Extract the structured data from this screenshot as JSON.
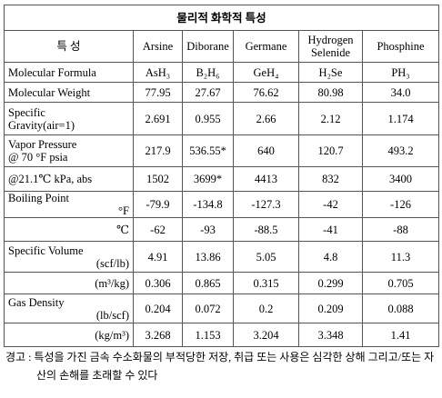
{
  "table": {
    "title": "물리적 화학적 특성",
    "header": [
      "특   성",
      "Arsine",
      "Diborane",
      "Germane",
      "Hydrogen Selenide",
      "Phosphine"
    ],
    "rows": [
      {
        "label": [
          "Molecular Formula"
        ],
        "cells": [
          "AsH₃",
          "B₂H₆",
          "GeH₄",
          "H₂Se",
          "PH₃"
        ]
      },
      {
        "label": [
          "Molecular Weight"
        ],
        "cells": [
          "77.95",
          "27.67",
          "76.62",
          "80.98",
          "34.0"
        ]
      },
      {
        "label": [
          "Specific",
          "Gravity(air=1)"
        ],
        "cells": [
          "2.691",
          "0.955",
          "2.66",
          "2.12",
          "1.174"
        ]
      },
      {
        "label": [
          "Vapor Pressure",
          "@ 70 °F psia"
        ],
        "cells": [
          "217.9",
          "536.55*",
          "640",
          "120.7",
          "493.2"
        ]
      },
      {
        "label": [
          "@21.1℃ kPa, abs"
        ],
        "cells": [
          "1502",
          "3699*",
          "4413",
          "832",
          "3400"
        ]
      },
      {
        "label": [
          "Boiling Point"
        ],
        "unit": "°F",
        "cells": [
          "-79.9",
          "-134.8",
          "-127.3",
          "-42",
          "-126"
        ]
      },
      {
        "unit": "℃",
        "cells": [
          "-62",
          "-93",
          "-88.5",
          "-41",
          "-88"
        ]
      },
      {
        "label": [
          "Specific Volume"
        ],
        "unit": "(scf/lb)",
        "cells": [
          "4.91",
          "13.86",
          "5.05",
          "4.8",
          "11.3"
        ]
      },
      {
        "unit": "(m³/kg)",
        "cells": [
          "0.306",
          "0.865",
          "0.315",
          "0.299",
          "0.705"
        ]
      },
      {
        "label": [
          "Gas Density"
        ],
        "unit": "(lb/scf)",
        "cells": [
          "0.204",
          "0.072",
          "0.2",
          "0.209",
          "0.088"
        ]
      },
      {
        "unit": "(kg/m³)",
        "cells": [
          "3.268",
          "1.153",
          "3.204",
          "3.348",
          "1.41"
        ]
      }
    ]
  },
  "warning": {
    "prefix": "경고 :",
    "text": "특성을 가진 금속 수소화물의 부적당한 저장, 취급 또는 사용은 심각한 상해 그리고/또는 자산의 손해를 초래할 수 있다"
  }
}
